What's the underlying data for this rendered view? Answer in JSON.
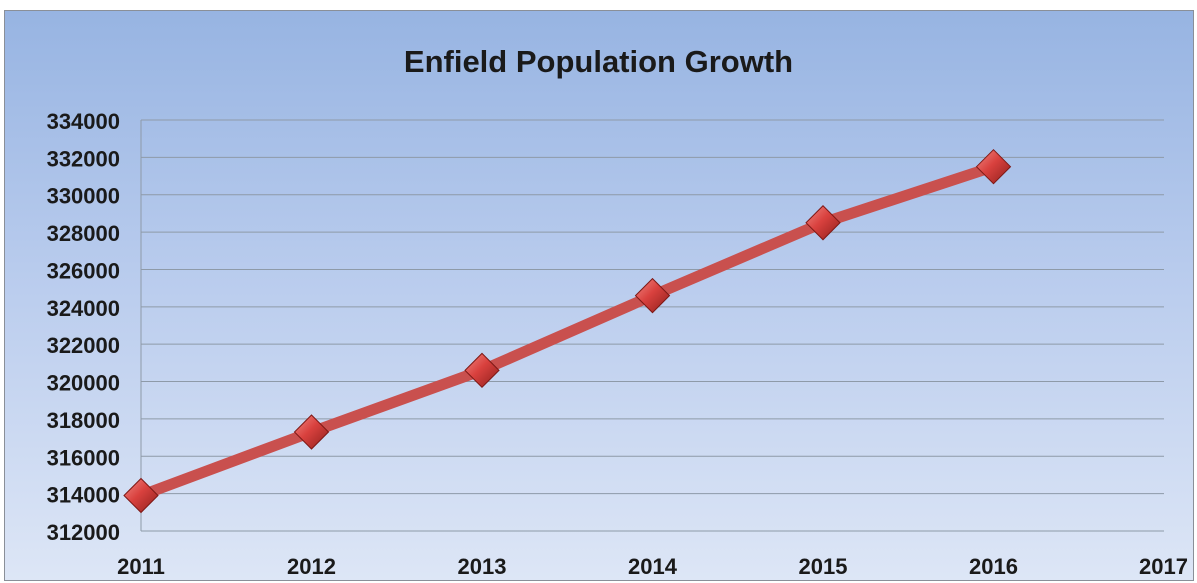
{
  "chart_data": {
    "type": "line",
    "title": "Enfield Population Growth",
    "xlabel": "",
    "ylabel": "",
    "categories": [
      "2011",
      "2012",
      "2013",
      "2014",
      "2015",
      "2016",
      "2017"
    ],
    "series": [
      {
        "values": [
          313900,
          317300,
          320600,
          324600,
          328500,
          331500,
          null
        ]
      }
    ],
    "y_ticks": [
      "334000",
      "332000",
      "330000",
      "328000",
      "326000",
      "324000",
      "322000",
      "320000",
      "318000",
      "316000",
      "314000",
      "312000"
    ],
    "ylim": [
      312000,
      334000
    ],
    "grid": true,
    "legend": "none",
    "colors": {
      "line": "#c9504e",
      "marker": "#d9413e",
      "grid": "#8e9aa8"
    }
  }
}
